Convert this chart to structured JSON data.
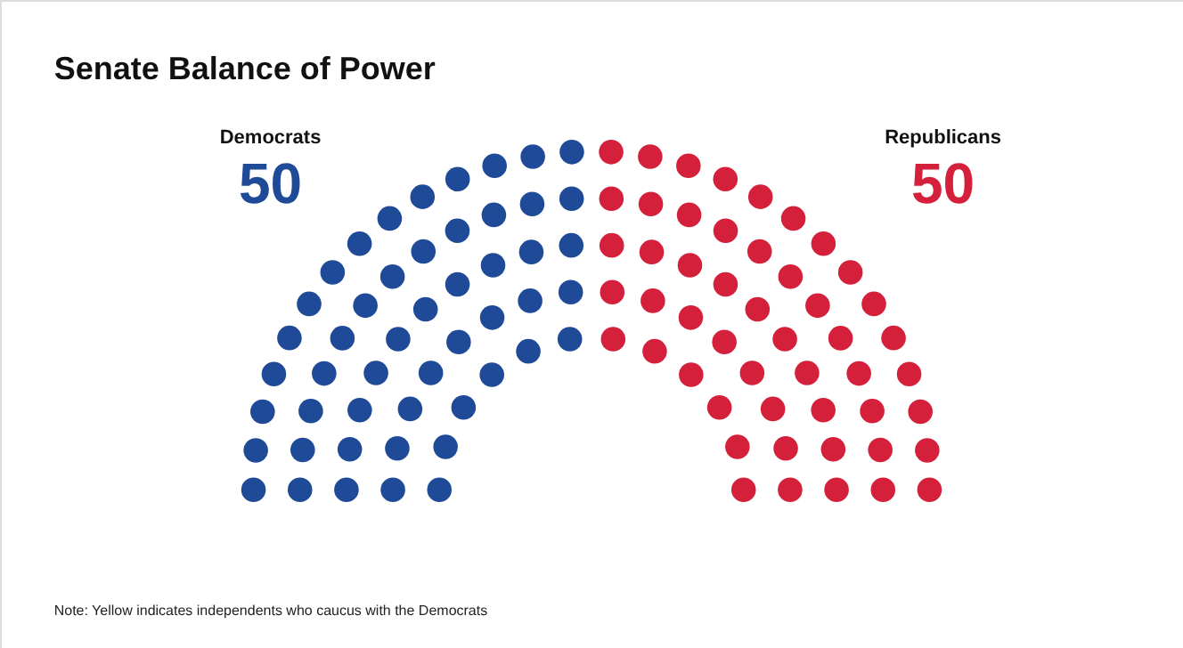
{
  "chart_data": {
    "type": "other",
    "title": "Senate Balance of Power",
    "categories": [
      "Democrats",
      "Republicans"
    ],
    "values": [
      50,
      50
    ],
    "colors": [
      "#1f4a98",
      "#d4203a"
    ],
    "data_labels": true,
    "annotations": [
      "Note: Yellow indicates independents who caucus with the Democrats"
    ]
  }
}
